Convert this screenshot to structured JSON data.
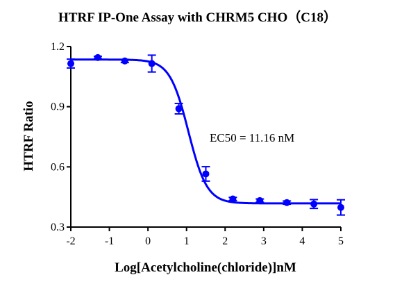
{
  "chart_data": {
    "type": "scatter",
    "title": "HTRF IP-One Assay with CHRM5 CHO（C18）",
    "xlabel": "Log[Acetylcholine(chloride)]nM",
    "ylabel": "HTRF Ratio",
    "xlim": [
      -2,
      5
    ],
    "ylim": [
      0.3,
      1.2
    ],
    "xticks": [
      -2,
      -1,
      0,
      1,
      2,
      3,
      4,
      5
    ],
    "yticks": [
      0.3,
      0.6,
      0.9,
      1.2
    ],
    "xtick_labels": [
      "-2",
      "-1",
      "0",
      "1",
      "2",
      "3",
      "4",
      "5"
    ],
    "ytick_labels": [
      "0.3",
      "0.6",
      "0.9",
      "1.2"
    ],
    "color": "#0000ff",
    "series": [
      {
        "x": [
          -2.0,
          -1.3,
          -0.6,
          0.1,
          0.8,
          1.5,
          2.2,
          2.9,
          3.6,
          4.3,
          5.0
        ],
        "y": [
          1.115,
          1.145,
          1.128,
          1.115,
          0.89,
          0.565,
          0.44,
          0.432,
          0.422,
          0.415,
          0.398
        ],
        "error": [
          0.022,
          0.006,
          0.008,
          0.042,
          0.026,
          0.036,
          0.008,
          0.008,
          0.008,
          0.022,
          0.038
        ]
      }
    ],
    "fit": {
      "bottom": 0.418,
      "top": 1.135,
      "log_ec50": 1.048,
      "hill_slope": -1.8
    },
    "annotation": "EC50 = 11.16 nM"
  }
}
